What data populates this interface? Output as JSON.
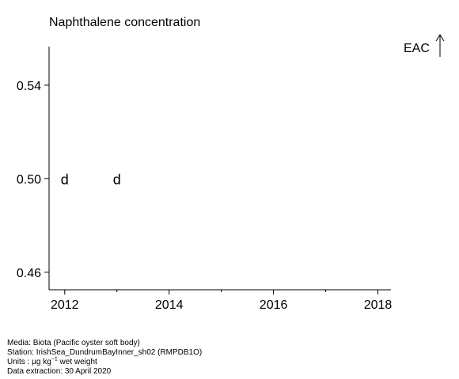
{
  "chart_data": {
    "type": "scatter",
    "title": "Naphthalene concentration",
    "xlim": [
      2011.7,
      2018.25
    ],
    "ylim": [
      0.4525,
      0.5565
    ],
    "x_ticks": [
      2012,
      2014,
      2016,
      2018
    ],
    "x_minor_ticks": [
      2013,
      2015,
      2017
    ],
    "y_ticks": [
      "0.46",
      "0.50",
      "0.54"
    ],
    "points": [
      {
        "x": 2012,
        "y": 0.5,
        "marker": "d"
      },
      {
        "x": 2013,
        "y": 0.5,
        "marker": "d"
      }
    ],
    "eac_label": "EAC"
  },
  "footer": {
    "media": "Media: Biota (Pacific oyster soft body)",
    "station": "Station: IrishSea_DundrumBayInner_sh02 (RMPDB1O)",
    "units_prefix": "Units : µg kg",
    "units_sup": "−1",
    "units_suffix": " wet weight",
    "extraction": "Data extraction: 30 April 2020"
  }
}
